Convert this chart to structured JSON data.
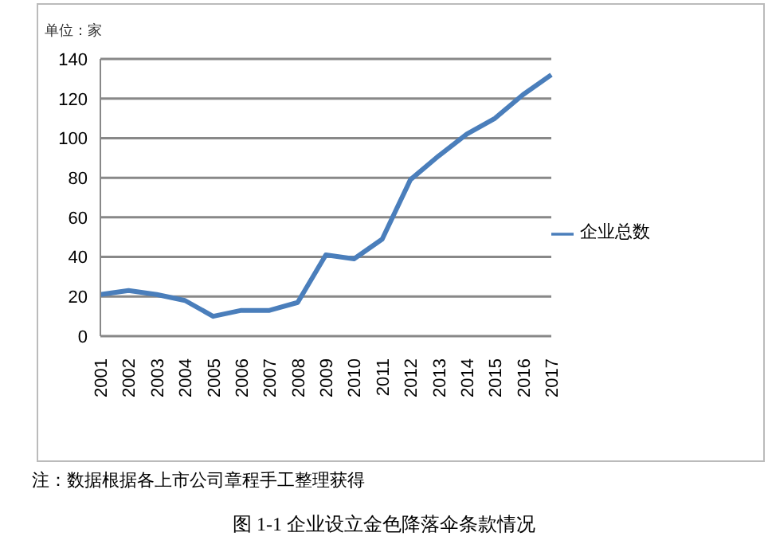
{
  "chart_data": {
    "type": "line",
    "title": "图 1-1 企业设立金色降落伞条款情况",
    "ylabel": "单位：家",
    "annotations": [
      "注：数据根据各上市公司章程手工整理获得"
    ],
    "categories": [
      "2001",
      "2002",
      "2003",
      "2004",
      "2005",
      "2006",
      "2007",
      "2008",
      "2009",
      "2010",
      "2011",
      "2012",
      "2013",
      "2014",
      "2015",
      "2016",
      "2017"
    ],
    "series": [
      {
        "name": "企业总数",
        "color": "#4a7ebb",
        "values": [
          21,
          23,
          21,
          18,
          10,
          13,
          13,
          17,
          41,
          39,
          49,
          79,
          91,
          102,
          110,
          122,
          132
        ]
      }
    ],
    "ylim": [
      0,
      140
    ],
    "yticks": [
      0,
      20,
      40,
      60,
      80,
      100,
      120,
      140
    ],
    "grid": "y",
    "legend": "right",
    "marker": "none",
    "line_style": "solid"
  }
}
